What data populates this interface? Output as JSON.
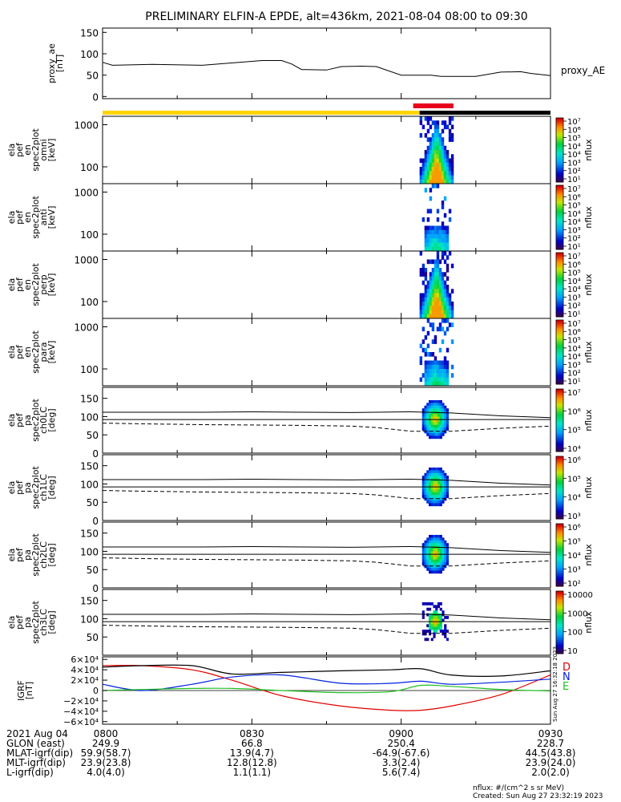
{
  "title": "PRELIMINARY ELFIN-A EPDE, alt=436km, 2021-08-04 08:00 to 09:30",
  "chart_data": [
    {
      "id": "proxy_ae",
      "type": "line",
      "ylabel": [
        "proxy_ae",
        "[nT]"
      ],
      "legend": "proxy_AE",
      "ylim": [
        -5,
        160
      ],
      "yticks": [
        "0",
        "50",
        "100",
        "150"
      ],
      "ytick_values": [
        0,
        50,
        100,
        150
      ],
      "x_minutes": [
        0,
        2,
        10,
        20,
        32,
        36,
        38,
        40,
        45,
        48,
        52,
        55,
        60,
        66,
        68,
        75,
        80,
        84,
        86,
        90
      ],
      "values": [
        80,
        73,
        75,
        73,
        84,
        84,
        76,
        63,
        62,
        70,
        71,
        70,
        50,
        50,
        47,
        47,
        57,
        58,
        54,
        49
      ]
    },
    {
      "id": "status_bar",
      "type": "bar",
      "segments": [
        {
          "from_min": 0,
          "to_min": 63.7,
          "color": "#ffd400"
        },
        {
          "from_min": 63.7,
          "to_min": 90,
          "color": "#000000"
        },
        {
          "from_min": 63.7,
          "to_min": 70.5,
          "color": "#e8001c",
          "elevated": true
        }
      ]
    },
    {
      "id": "omni",
      "type": "heatmap",
      "ylabel": [
        "ela",
        "pef",
        "en",
        "spec2plot",
        "omni",
        "[keV]"
      ],
      "log": true,
      "yticks": [
        "100",
        "1000"
      ],
      "zlabel": "nflux",
      "zticks": [
        "10⁷",
        "10⁶",
        "10⁵",
        "10⁴",
        "10⁴",
        "10³",
        "10²",
        "10¹"
      ],
      "pattern": "dome"
    },
    {
      "id": "anti",
      "type": "heatmap",
      "ylabel": [
        "ela",
        "pef",
        "en",
        "spec2plot",
        "anti",
        "[keV]"
      ],
      "log": true,
      "yticks": [
        "100",
        "1000"
      ],
      "zlabel": "nflux",
      "zticks": [
        "10⁷",
        "10⁶",
        "10⁵",
        "10⁴",
        "10⁴",
        "10³",
        "10²",
        "10¹"
      ],
      "pattern": "sparse"
    },
    {
      "id": "perp",
      "type": "heatmap",
      "ylabel": [
        "ela",
        "pef",
        "en",
        "spec2plot",
        "perp",
        "[keV]"
      ],
      "log": true,
      "yticks": [
        "100",
        "1000"
      ],
      "zlabel": "nflux",
      "zticks": [
        "10⁷",
        "10⁶",
        "10⁵",
        "10⁴",
        "10⁴",
        "10³",
        "10²",
        "10¹"
      ],
      "pattern": "dome"
    },
    {
      "id": "para",
      "type": "heatmap",
      "ylabel": [
        "ela",
        "pef",
        "en",
        "spec2plot",
        "para",
        "[keV]"
      ],
      "log": true,
      "yticks": [
        "100",
        "1000"
      ],
      "zlabel": "nflux",
      "zticks": [
        "10⁷",
        "10⁶",
        "10⁵",
        "10⁴",
        "10⁴",
        "10³",
        "10²",
        "10¹"
      ],
      "pattern": "sparse"
    },
    {
      "id": "ch0LC",
      "type": "heatmap",
      "ylabel": [
        "ela",
        "pef",
        "pa",
        "spec2plot",
        "ch0LC",
        "[deg]"
      ],
      "log": false,
      "ylim": [
        0,
        180
      ],
      "yticks": [
        "0",
        "50",
        "100",
        "150"
      ],
      "ytick_values": [
        0,
        50,
        100,
        150
      ],
      "zlabel": "nflux",
      "zticks": [
        "10⁷",
        "10⁶",
        "10⁵",
        "10⁴"
      ],
      "pattern": "pa"
    },
    {
      "id": "ch1LC",
      "type": "heatmap",
      "ylabel": [
        "ela",
        "pef",
        "pa",
        "spec2plot",
        "ch1LC",
        "[deg]"
      ],
      "log": false,
      "ylim": [
        0,
        180
      ],
      "yticks": [
        "0",
        "50",
        "100",
        "150"
      ],
      "ytick_values": [
        0,
        50,
        100,
        150
      ],
      "zlabel": "nflux",
      "zticks": [
        "10⁶",
        "10⁵",
        "10⁴",
        "10³"
      ],
      "pattern": "pa"
    },
    {
      "id": "ch2LC",
      "type": "heatmap",
      "ylabel": [
        "ela",
        "pef",
        "pa",
        "spec2plot",
        "ch2LC",
        "[deg]"
      ],
      "log": false,
      "ylim": [
        0,
        180
      ],
      "yticks": [
        "0",
        "50",
        "100",
        "150"
      ],
      "ytick_values": [
        0,
        50,
        100,
        150
      ],
      "zlabel": "nflux",
      "zticks": [
        "10⁶",
        "10⁵",
        "10⁴",
        "10³",
        "10²"
      ],
      "pattern": "pa"
    },
    {
      "id": "ch3LC",
      "type": "heatmap",
      "ylabel": [
        "ela",
        "pef",
        "pa",
        "spec2plot",
        "ch3LC",
        "[deg]"
      ],
      "log": false,
      "ylim": [
        0,
        180
      ],
      "yticks": [
        "50",
        "100",
        "150"
      ],
      "ytick_values": [
        50,
        100,
        150
      ],
      "zlabel": "nflux",
      "zticks": [
        "10000",
        "1000",
        "100",
        "10"
      ],
      "pattern": "pa_sparse"
    },
    {
      "id": "igrf",
      "type": "line",
      "ylabel": [
        "IGRF",
        "[nT]"
      ],
      "ylim": [
        -65000,
        65000
      ],
      "yticks": [
        "6×10⁴",
        "4×10⁴",
        "2×10⁴",
        "0",
        "−2×10⁴",
        "−4×10⁴",
        "−6×10⁴"
      ],
      "ytick_values": [
        60000,
        40000,
        20000,
        0,
        -20000,
        -40000,
        -60000
      ],
      "x_minutes": [
        0,
        8,
        18,
        26,
        36,
        48,
        58,
        64,
        70,
        80,
        90
      ],
      "series": [
        {
          "name": "D",
          "color": "#e00000",
          "values": [
            48000,
            48000,
            40000,
            20000,
            -10000,
            -30000,
            -38000,
            -38000,
            -30000,
            -8000,
            30000
          ]
        },
        {
          "name": "N",
          "color": "#0020e0",
          "values": [
            12000,
            0,
            12000,
            26000,
            30000,
            14000,
            14000,
            18000,
            12000,
            16000,
            22000
          ]
        },
        {
          "name": "E",
          "color": "#20c020",
          "values": [
            0,
            2000,
            4000,
            4000,
            0,
            -4000,
            -2000,
            10000,
            8000,
            2000,
            -1000
          ]
        },
        {
          "name": "",
          "color": "#000000",
          "values": [
            45000,
            48000,
            48000,
            32000,
            35000,
            38000,
            40000,
            42000,
            30000,
            28000,
            38000
          ]
        }
      ]
    }
  ],
  "bottom_axis": {
    "row_labels": [
      "2021 Aug 04",
      "GLON (east)",
      "MLAT-igrf(dip)",
      "MLT-igrf(dip)",
      "L-igrf(dip)"
    ],
    "columns": [
      {
        "minute": 0,
        "values": [
          "0800",
          "249.9",
          "59.9(58.7)",
          "23.9(23.8)",
          "4.0(4.0)"
        ]
      },
      {
        "minute": 30,
        "values": [
          "0830",
          "66.8",
          "13.9(4.7)",
          "12.8(12.8)",
          "1.1(1.1)"
        ]
      },
      {
        "minute": 60,
        "values": [
          "0900",
          "250.4",
          "-64.9(-67.6)",
          "3.3(2.4)",
          "5.6(7.4)"
        ]
      },
      {
        "minute": 90,
        "values": [
          "0930",
          "228.7",
          "44.5(43.8)",
          "23.9(24.0)",
          "2.0(2.0)"
        ]
      }
    ]
  },
  "side_stamp": "Sun Aug 27 16:32:18 2023",
  "footer": {
    "units": "nflux: #/(cm^2 s sr MeV)",
    "created": "Created: Sun Aug 27 23:32:19 2023"
  }
}
